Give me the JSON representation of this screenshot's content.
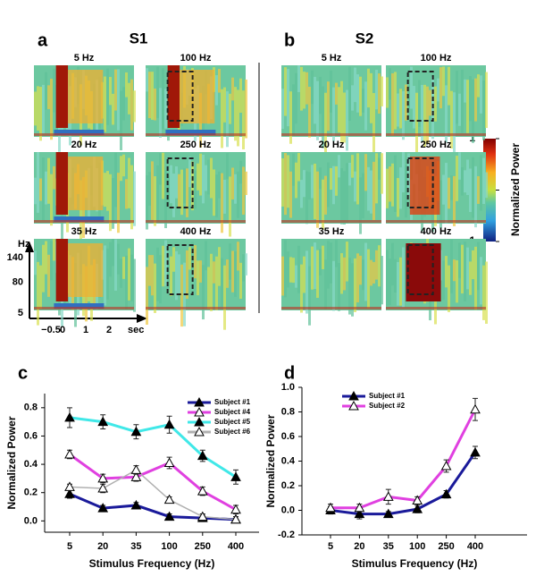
{
  "panels": [
    {
      "letter": "a",
      "title": "S1",
      "conditions": [
        "5 Hz",
        "20 Hz",
        "35 Hz",
        "100 Hz",
        "250 Hz",
        "400 Hz"
      ]
    },
    {
      "letter": "b",
      "title": "S2",
      "conditions": [
        "5 Hz",
        "20 Hz",
        "35 Hz",
        "100 Hz",
        "250 Hz",
        "400 Hz"
      ]
    }
  ],
  "colorbar": {
    "label": "Normalized Power",
    "ticks": [
      1,
      0,
      {
        "value": -1,
        "label": "−1"
      }
    ]
  },
  "spectrogram_axes": {
    "y_label": "Hz",
    "yticks": [
      140,
      80,
      5
    ],
    "xticks": [
      {
        "value": -0.5,
        "label": "−0.5"
      },
      0,
      1,
      2
    ],
    "x_label": "sec"
  },
  "chart_data": [
    {
      "type": "line",
      "letter": "c",
      "xlabel": "Stimulus Frequency (Hz)",
      "ylabel": "Normalized Power",
      "categories": [
        "5",
        "20",
        "35",
        "100",
        "250",
        "400"
      ],
      "ylim": [
        -0.08,
        0.9
      ],
      "yticks": [
        {
          "value": 0,
          "label": "0.0"
        },
        {
          "value": 0.2,
          "label": "0.2"
        },
        {
          "value": 0.4,
          "label": "0.4"
        },
        {
          "value": 0.6,
          "label": "0.6"
        },
        {
          "value": 0.8,
          "label": "0.8"
        }
      ],
      "legend": "upper right",
      "series": [
        {
          "name": "Subject #1",
          "color": "#1a1a9a",
          "marker_fill": true,
          "values": [
            0.19,
            0.09,
            0.11,
            0.03,
            0.02,
            0.01
          ],
          "errors": [
            0.03,
            0.02,
            0.02,
            0.02,
            0.02,
            0.02
          ]
        },
        {
          "name": "Subject #4",
          "color": "#e040e0",
          "marker_fill": false,
          "values": [
            0.47,
            0.3,
            0.31,
            0.41,
            0.21,
            0.08
          ],
          "errors": [
            0.03,
            0.03,
            0.03,
            0.04,
            0.03,
            0.03
          ]
        },
        {
          "name": "Subject #5",
          "color": "#40e8e8",
          "marker_fill": true,
          "values": [
            0.73,
            0.7,
            0.63,
            0.68,
            0.46,
            0.31
          ],
          "errors": [
            0.07,
            0.05,
            0.05,
            0.06,
            0.04,
            0.05
          ]
        },
        {
          "name": "Subject #6",
          "color": "#b0b0b0",
          "marker_fill": false,
          "values": [
            0.24,
            0.23,
            0.36,
            0.15,
            0.03,
            0.01
          ],
          "errors": [
            0.02,
            0.03,
            0.03,
            0.02,
            0.02,
            0.02
          ]
        }
      ]
    },
    {
      "type": "line",
      "letter": "d",
      "xlabel": "Stimulus Frequency (Hz)",
      "ylabel": "Normalized Power",
      "categories": [
        "5",
        "20",
        "35",
        "100",
        "250",
        "400"
      ],
      "ylim": [
        -0.2,
        1.0
      ],
      "yticks": [
        {
          "value": -0.2,
          "label": "-0.2"
        },
        {
          "value": 0,
          "label": "0.0"
        },
        {
          "value": 0.2,
          "label": "0.2"
        },
        {
          "value": 0.4,
          "label": "0.4"
        },
        {
          "value": 0.6,
          "label": "0.6"
        },
        {
          "value": 0.8,
          "label": "0.8"
        },
        {
          "value": 1.0,
          "label": "1.0"
        }
      ],
      "legend": "upper left",
      "series": [
        {
          "name": "Subject #1",
          "color": "#1a1a9a",
          "marker_fill": true,
          "values": [
            0.0,
            -0.03,
            -0.03,
            0.01,
            0.13,
            0.47
          ],
          "errors": [
            0.03,
            0.04,
            0.02,
            0.03,
            0.03,
            0.05
          ]
        },
        {
          "name": "Subject #2",
          "color": "#e040e0",
          "marker_fill": false,
          "values": [
            0.02,
            0.02,
            0.11,
            0.08,
            0.36,
            0.82
          ],
          "errors": [
            0.03,
            0.03,
            0.06,
            0.03,
            0.05,
            0.09
          ]
        }
      ]
    }
  ]
}
